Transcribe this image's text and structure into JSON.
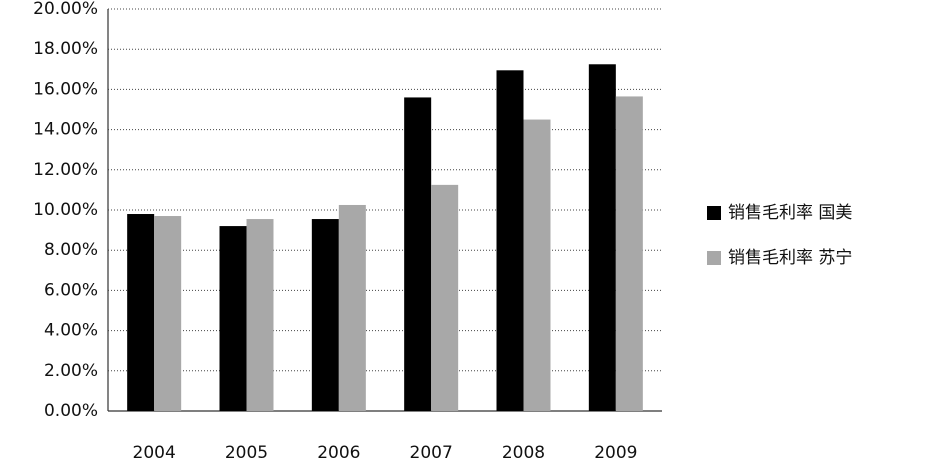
{
  "chart_data": {
    "type": "bar",
    "categories": [
      "2004",
      "2005",
      "2006",
      "2007",
      "2008",
      "2009"
    ],
    "series": [
      {
        "name": "销售毛利率 国美",
        "color": "#000000",
        "values": [
          9.8,
          9.2,
          9.55,
          15.6,
          16.95,
          17.25
        ]
      },
      {
        "name": "销售毛利率 苏宁",
        "color": "#a8a8a8",
        "values": [
          9.7,
          9.55,
          10.25,
          11.25,
          14.5,
          15.65
        ]
      }
    ],
    "ylim": [
      0,
      20
    ],
    "yticks": [
      {
        "value": 0,
        "label": "0.00%"
      },
      {
        "value": 2,
        "label": "2.00%"
      },
      {
        "value": 4,
        "label": "4.00%"
      },
      {
        "value": 6,
        "label": "6.00%"
      },
      {
        "value": 8,
        "label": "8.00%"
      },
      {
        "value": 10,
        "label": "10.00%"
      },
      {
        "value": 12,
        "label": "12.00%"
      },
      {
        "value": 14,
        "label": "14.00%"
      },
      {
        "value": 16,
        "label": "16.00%"
      },
      {
        "value": 18,
        "label": "18.00%"
      },
      {
        "value": 20,
        "label": "20.00%"
      }
    ],
    "grid": true,
    "legend": "right"
  }
}
